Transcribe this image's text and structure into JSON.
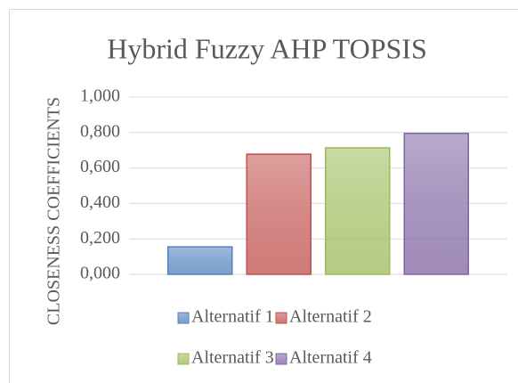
{
  "chart_data": {
    "type": "bar",
    "title": "Hybrid Fuzzy AHP TOPSIS",
    "y_label": "CLOSENESS COEFFICIENTS",
    "categories": [
      null
    ],
    "series": [
      {
        "name": "Alternatif 1",
        "color": "#4f81bd",
        "values": [
          0.155
        ]
      },
      {
        "name": "Alternatif 2",
        "color": "#c0504d",
        "values": [
          0.678
        ]
      },
      {
        "name": "Alternatif 3",
        "color": "#9bbb59",
        "values": [
          0.714
        ]
      },
      {
        "name": "Alternatif 4",
        "color": "#8064a2",
        "values": [
          0.795
        ]
      }
    ],
    "ylim": [
      0,
      1
    ],
    "yticks": [
      {
        "value": 0,
        "label": "0,000"
      },
      {
        "value": 0.2,
        "label": "0,200"
      },
      {
        "value": 0.4,
        "label": "0,400"
      },
      {
        "value": 0.6,
        "label": "0,600"
      },
      {
        "value": 0.8,
        "label": "0,800"
      },
      {
        "value": 1,
        "label": "1,000"
      }
    ],
    "grid": true,
    "legend": "bottom"
  }
}
